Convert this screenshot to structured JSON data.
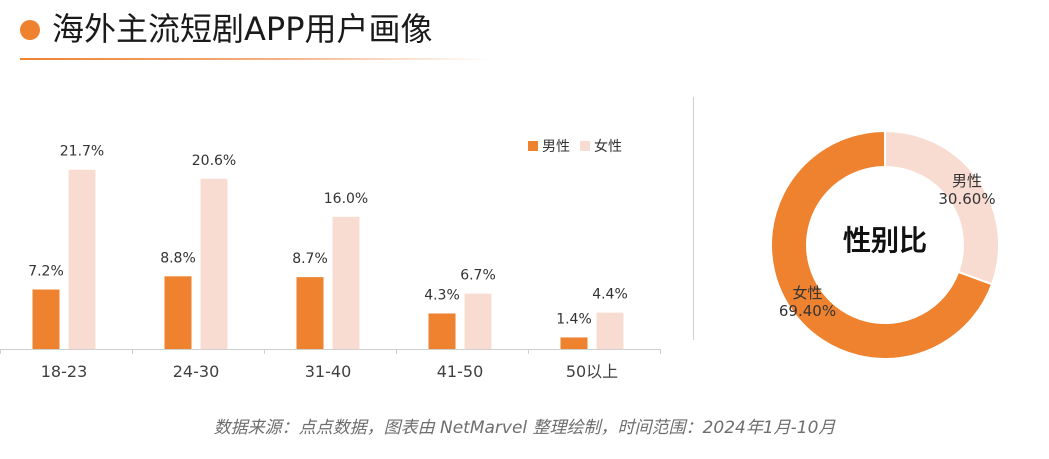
{
  "header": {
    "title": "海外主流短剧APP用户画像"
  },
  "source_note": "数据来源：点点数据，图表由 NetMarvel 整理绘制，时间范围：2024年1月-10月",
  "colors": {
    "male": "#ee822f",
    "female": "#f8dcd1",
    "accent": "#ee822f"
  },
  "chart_data": [
    {
      "type": "bar",
      "categories": [
        "18-23",
        "24-30",
        "31-40",
        "41-50",
        "50以上"
      ],
      "series": [
        {
          "name": "男性",
          "values": [
            7.2,
            8.8,
            8.7,
            4.3,
            1.4
          ],
          "labels": [
            "7.2%",
            "8.8%",
            "8.7%",
            "4.3%",
            "1.4%"
          ]
        },
        {
          "name": "女性",
          "values": [
            21.7,
            20.6,
            16.0,
            6.7,
            4.4
          ],
          "labels": [
            "21.7%",
            "20.6%",
            "16.0%",
            "6.7%",
            "4.4%"
          ]
        }
      ],
      "ylim": [
        0,
        23
      ],
      "grid": false,
      "legend": "top-right"
    },
    {
      "type": "pie",
      "title": "性别比",
      "slices": [
        {
          "name": "男性",
          "value": 30.6,
          "label": "30.60%"
        },
        {
          "name": "女性",
          "value": 69.4,
          "label": "69.40%"
        }
      ]
    }
  ]
}
